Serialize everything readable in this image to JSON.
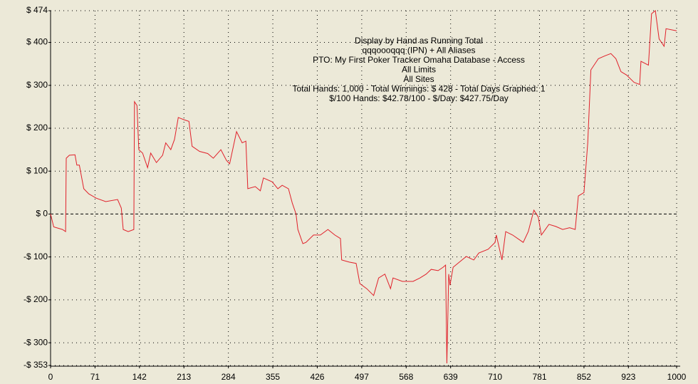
{
  "chart_data": {
    "type": "line",
    "annotations": [
      "Display by Hand as Running Total",
      "qqqoooqqq (IPN) + All Aliases",
      "PTO: My First Poker Tracker Omaha Database - Access",
      "All Limits",
      "All Sites",
      "Total Hands: 1,000 - Total Winnings: $ 428 - Total Days Graphed: 1",
      "$/100 Hands: $42.78/100 - $/Day: $427.75/Day"
    ],
    "x": [
      0,
      5,
      19,
      24,
      25,
      30,
      39,
      42,
      46,
      53,
      61,
      73,
      88,
      107,
      113,
      116,
      124,
      133,
      134,
      138,
      141,
      147,
      155,
      160,
      169,
      179,
      184,
      192,
      198,
      204,
      213,
      221,
      226,
      238,
      251,
      260,
      272,
      281,
      286,
      297,
      306,
      312,
      315,
      327,
      335,
      340,
      354,
      363,
      370,
      380,
      386,
      392,
      395,
      403,
      408,
      420,
      431,
      443,
      454,
      463,
      465,
      477,
      488,
      494,
      505,
      516,
      524,
      534,
      543,
      547,
      562,
      579,
      590,
      600,
      608,
      619,
      627,
      631,
      633,
      636,
      638,
      643,
      653,
      664,
      676,
      684,
      699,
      710,
      712,
      721,
      727,
      738,
      755,
      763,
      772,
      779,
      784,
      796,
      807,
      818,
      829,
      838,
      843,
      852,
      858,
      863,
      875,
      886,
      895,
      903,
      911,
      920,
      932,
      941,
      943,
      955,
      960,
      966,
      972,
      980,
      983,
      1000
    ],
    "series": [
      {
        "name": "Running Total",
        "color": "#e0202a",
        "values": [
          0,
          -30,
          -36,
          -41,
          130,
          137,
          138,
          114,
          114,
          59,
          47,
          37,
          29,
          34,
          14,
          -36,
          -41,
          -36,
          262,
          253,
          150,
          142,
          108,
          142,
          120,
          137,
          166,
          150,
          174,
          225,
          220,
          216,
          158,
          146,
          141,
          130,
          150,
          125,
          117,
          192,
          166,
          170,
          59,
          64,
          54,
          84,
          75,
          59,
          67,
          59,
          26,
          0,
          -36,
          -69,
          -66,
          -49,
          -49,
          -36,
          -49,
          -57,
          -107,
          -112,
          -115,
          -162,
          -174,
          -190,
          -149,
          -140,
          -174,
          -149,
          -157,
          -157,
          -149,
          -140,
          -129,
          -132,
          -124,
          -119,
          -348,
          -140,
          -166,
          -124,
          -112,
          -99,
          -107,
          -91,
          -82,
          -66,
          -49,
          -107,
          -41,
          -49,
          -66,
          -41,
          9,
          -7,
          -49,
          -24,
          -29,
          -36,
          -32,
          -36,
          42,
          50,
          166,
          336,
          362,
          369,
          374,
          362,
          332,
          324,
          307,
          302,
          356,
          347,
          467,
          474,
          408,
          391,
          432,
          427
        ]
      }
    ],
    "xlim": [
      0,
      1000
    ],
    "xticks": [
      0,
      71,
      142,
      213,
      284,
      355,
      426,
      497,
      568,
      639,
      710,
      781,
      852,
      923,
      1000
    ],
    "ylim": [
      -353,
      474
    ],
    "yticks": [
      {
        "value": -353,
        "label": "-$ 353"
      },
      {
        "value": -300,
        "label": "-$ 300"
      },
      {
        "value": -200,
        "label": "-$ 200"
      },
      {
        "value": -100,
        "label": "-$ 100"
      },
      {
        "value": 0,
        "label": "$ 0"
      },
      {
        "value": 100,
        "label": "$ 100"
      },
      {
        "value": 200,
        "label": "$ 200"
      },
      {
        "value": 300,
        "label": "$ 300"
      },
      {
        "value": 400,
        "label": "$ 400"
      },
      {
        "value": 474,
        "label": "$ 474"
      }
    ],
    "grid": true
  }
}
